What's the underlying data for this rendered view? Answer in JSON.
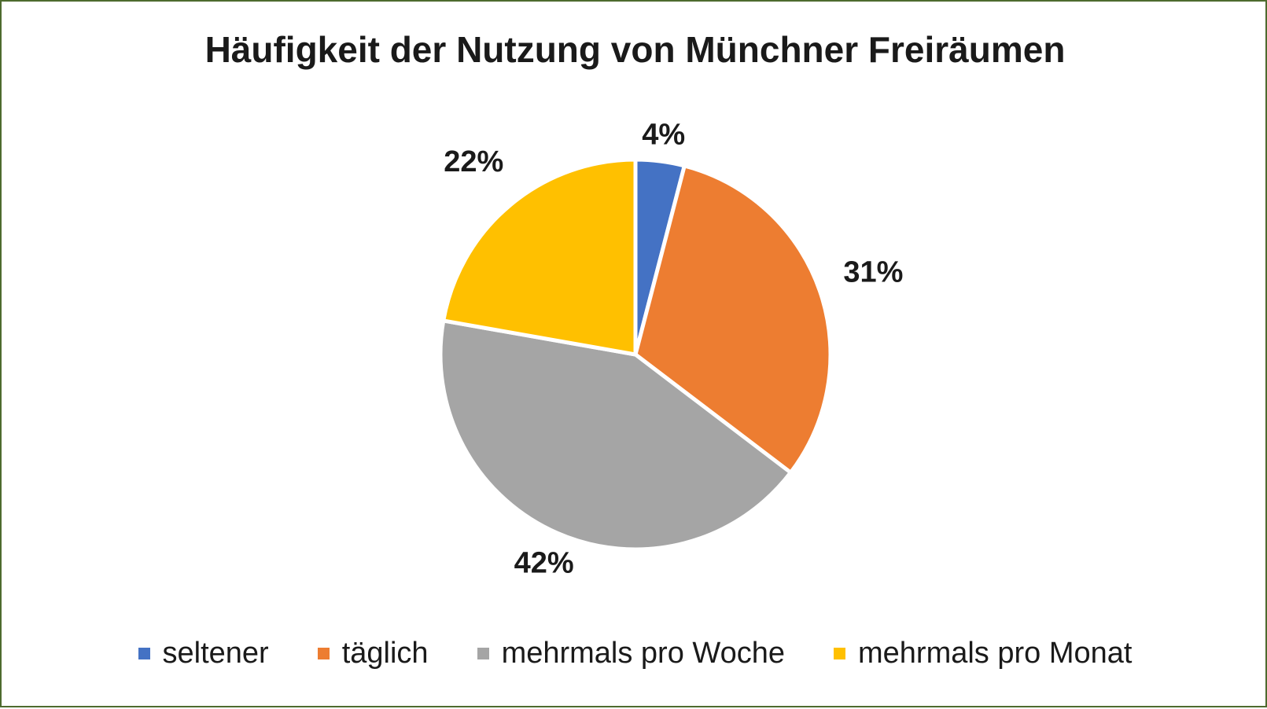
{
  "chart_data": {
    "type": "pie",
    "title": "Häufigkeit der Nutzung von Münchner Freiräumen",
    "categories": [
      "seltener",
      "täglich",
      "mehrmals pro Woche",
      "mehrmals pro Monat"
    ],
    "values": [
      4,
      31,
      42,
      22
    ],
    "labels": [
      "4%",
      "31%",
      "42%",
      "22%"
    ],
    "colors": [
      "#4472c4",
      "#ed7d31",
      "#a5a5a5",
      "#ffc000"
    ],
    "start_angle_deg": 0,
    "direction": "clockwise",
    "legend": "bottom"
  }
}
